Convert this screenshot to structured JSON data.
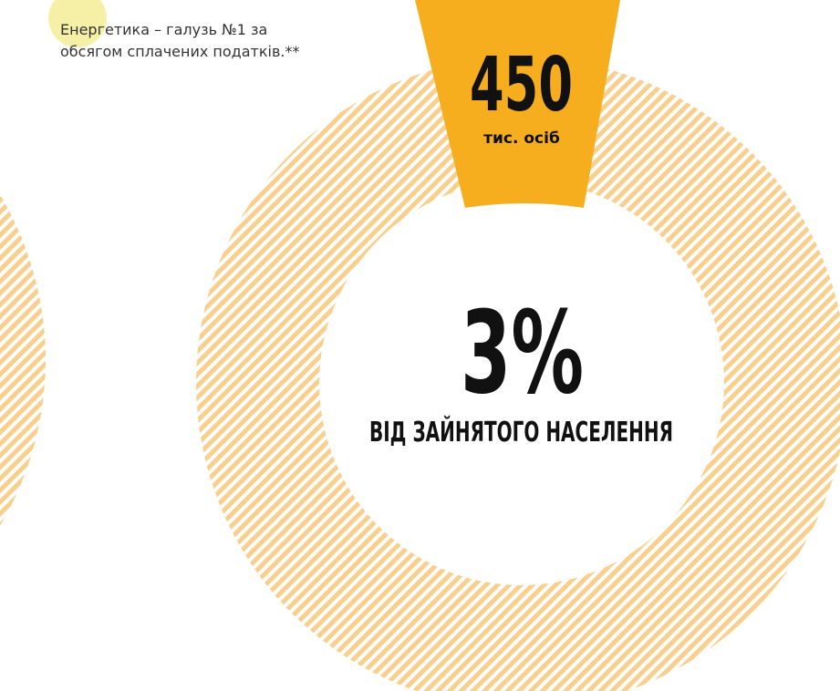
{
  "note": {
    "line1": "Енергетика – галузь №1 за",
    "line2": "обсягом сплачених податків.**"
  },
  "badge": {
    "number": "450",
    "unit": "тис. осіб"
  },
  "center": {
    "percent": "3%",
    "caption": "ВІД ЗАЙНЯТОГО НАСЕЛЕННЯ"
  }
}
